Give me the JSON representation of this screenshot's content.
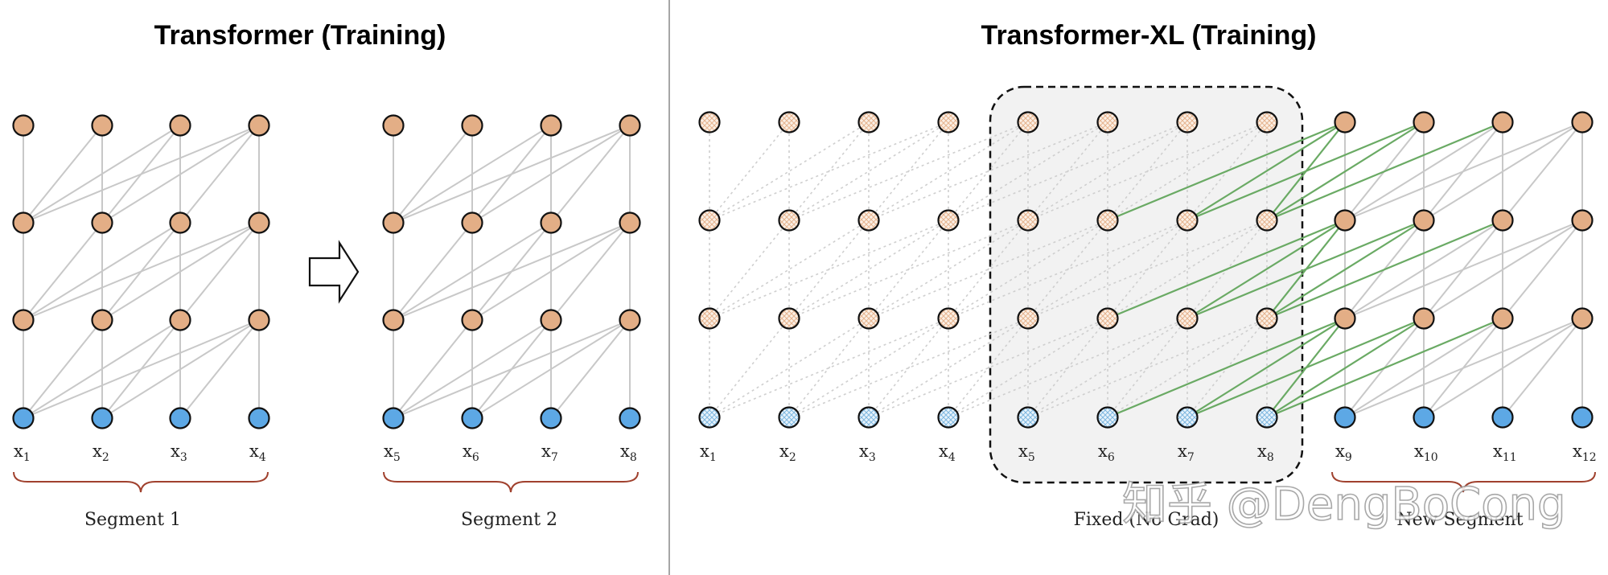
{
  "left_panel": {
    "title": "Transformer (Training)",
    "segments": [
      {
        "label": "Segment 1",
        "tokens": [
          "1",
          "2",
          "3",
          "4"
        ]
      },
      {
        "label": "Segment 2",
        "tokens": [
          "5",
          "6",
          "7",
          "8"
        ]
      }
    ]
  },
  "right_panel": {
    "title": "Transformer-XL (Training)",
    "tokens": [
      "1",
      "2",
      "3",
      "4",
      "5",
      "6",
      "7",
      "8",
      "9",
      "10",
      "11",
      "12"
    ],
    "fixed_label": "Fixed (No Grad)",
    "new_label": "New Segment"
  },
  "token_prefix": "x",
  "watermark": "知乎 @DengBoCong",
  "colors": {
    "hidden_node": "#E3AE86",
    "input_node": "#5DA8E5",
    "edge": "#c8c8c8",
    "memory_edge": "#cfcfcf",
    "grad_edge": "#6aaa64",
    "brace": "#a0412e",
    "fixed_box": "#f2f2f2"
  }
}
